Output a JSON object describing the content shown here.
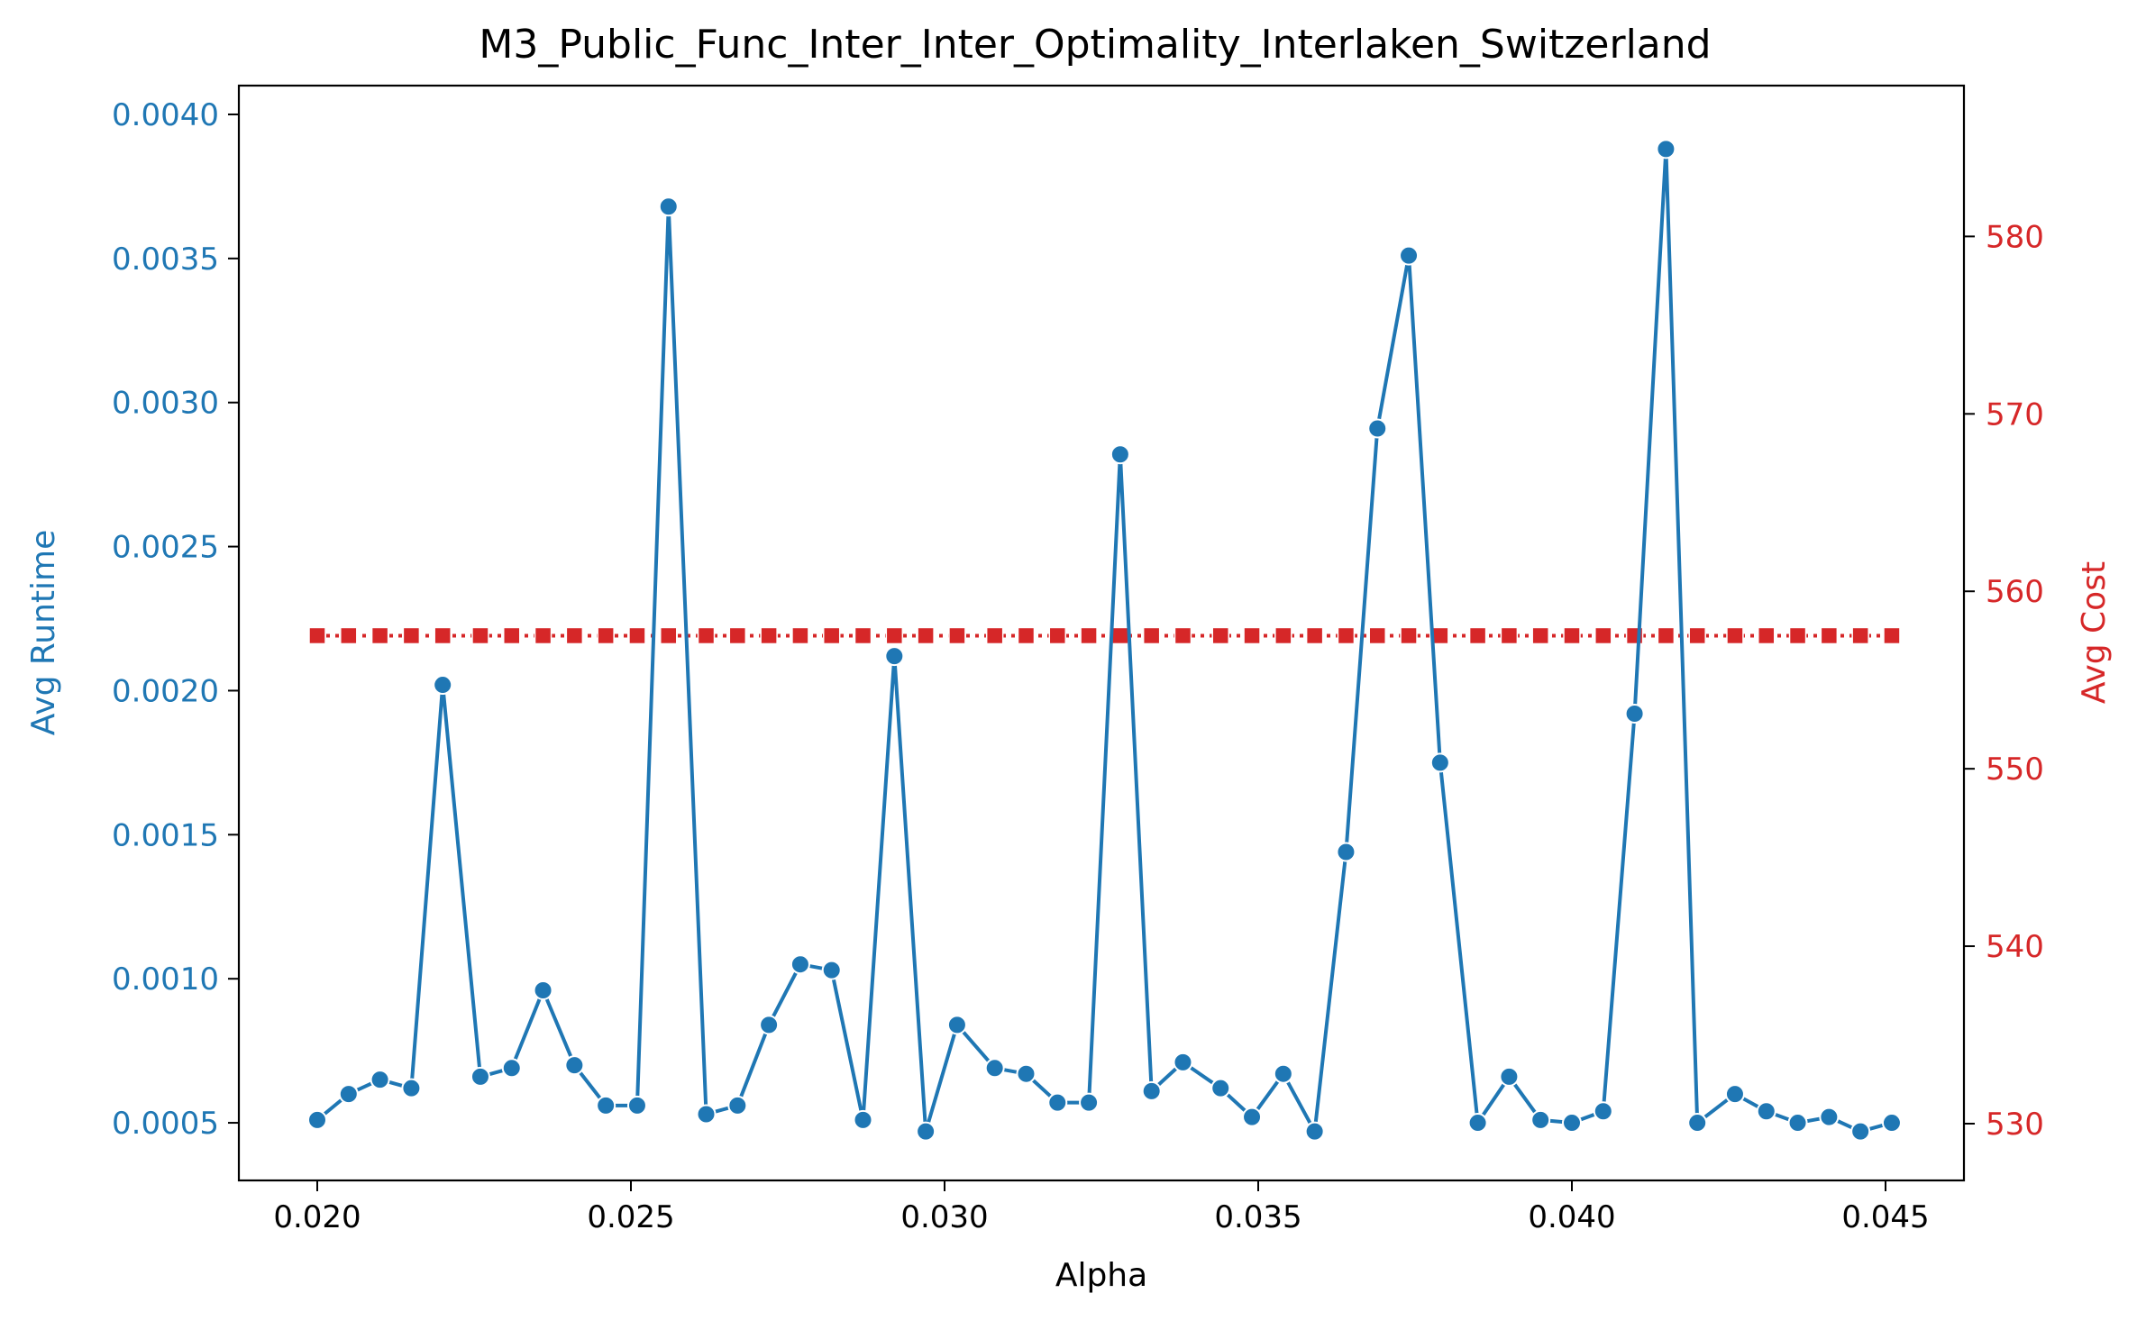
{
  "chart_data": {
    "type": "line",
    "title": "M3_Public_Func_Inter_Inter_Optimality_Interlaken_Switzerland",
    "xlabel": "Alpha",
    "ylabel_left": "Avg Runtime",
    "ylabel_right": "Avg Cost",
    "xlim": [
      0.01875,
      0.04625
    ],
    "ylim_left": [
      0.0003,
      0.0041
    ],
    "ylim_right": [
      526.8,
      588.5
    ],
    "x_ticks": [
      "0.020",
      "0.025",
      "0.030",
      "0.035",
      "0.040",
      "0.045"
    ],
    "y_ticks_left": [
      "0.0005",
      "0.0010",
      "0.0015",
      "0.0020",
      "0.0025",
      "0.0030",
      "0.0035",
      "0.0040"
    ],
    "y_ticks_right": [
      "530",
      "540",
      "550",
      "560",
      "570",
      "580"
    ],
    "grid": false,
    "colors": {
      "runtime": "#1f77b4",
      "cost": "#d62728",
      "axis": "#000000"
    },
    "x": [
      0.02,
      0.0205,
      0.021,
      0.0215,
      0.022,
      0.0226,
      0.0231,
      0.0236,
      0.0241,
      0.0246,
      0.0251,
      0.0256,
      0.0262,
      0.0267,
      0.0272,
      0.0277,
      0.0282,
      0.0287,
      0.0292,
      0.0297,
      0.0302,
      0.0308,
      0.0313,
      0.0318,
      0.0323,
      0.0328,
      0.0333,
      0.0338,
      0.0344,
      0.0349,
      0.0354,
      0.0359,
      0.0364,
      0.0369,
      0.0374,
      0.0379,
      0.0385,
      0.039,
      0.0395,
      0.04,
      0.0405,
      0.041,
      0.0415,
      0.042,
      0.0426,
      0.0431,
      0.0436,
      0.0441,
      0.0446,
      0.0451
    ],
    "series": [
      {
        "name": "Avg Runtime",
        "axis": "left",
        "marker": "circle",
        "linestyle": "solid",
        "values": [
          0.00051,
          0.0006,
          0.00065,
          0.00062,
          0.00202,
          0.00066,
          0.00069,
          0.00096,
          0.0007,
          0.00056,
          0.00056,
          0.00368,
          0.00053,
          0.00056,
          0.00084,
          0.00105,
          0.00103,
          0.00051,
          0.00212,
          0.00047,
          0.00084,
          0.00069,
          0.00067,
          0.00057,
          0.00057,
          0.00282,
          0.00061,
          0.00071,
          0.00062,
          0.00052,
          0.00067,
          0.00047,
          0.00144,
          0.00291,
          0.00351,
          0.00175,
          0.0005,
          0.00066,
          0.00051,
          0.0005,
          0.00054,
          0.00192,
          0.00388,
          0.0005,
          0.0006,
          0.00054,
          0.0005,
          0.00052,
          0.00047,
          0.0005
        ]
      },
      {
        "name": "Avg Cost",
        "axis": "right",
        "marker": "square",
        "linestyle": "dotted",
        "values": [
          557.5,
          557.5,
          557.5,
          557.5,
          557.5,
          557.5,
          557.5,
          557.5,
          557.5,
          557.5,
          557.5,
          557.5,
          557.5,
          557.5,
          557.5,
          557.5,
          557.5,
          557.5,
          557.5,
          557.5,
          557.5,
          557.5,
          557.5,
          557.5,
          557.5,
          557.5,
          557.5,
          557.5,
          557.5,
          557.5,
          557.5,
          557.5,
          557.5,
          557.5,
          557.5,
          557.5,
          557.5,
          557.5,
          557.5,
          557.5,
          557.5,
          557.5,
          557.5,
          557.5,
          557.5,
          557.5,
          557.5,
          557.5,
          557.5,
          557.5
        ]
      }
    ]
  }
}
